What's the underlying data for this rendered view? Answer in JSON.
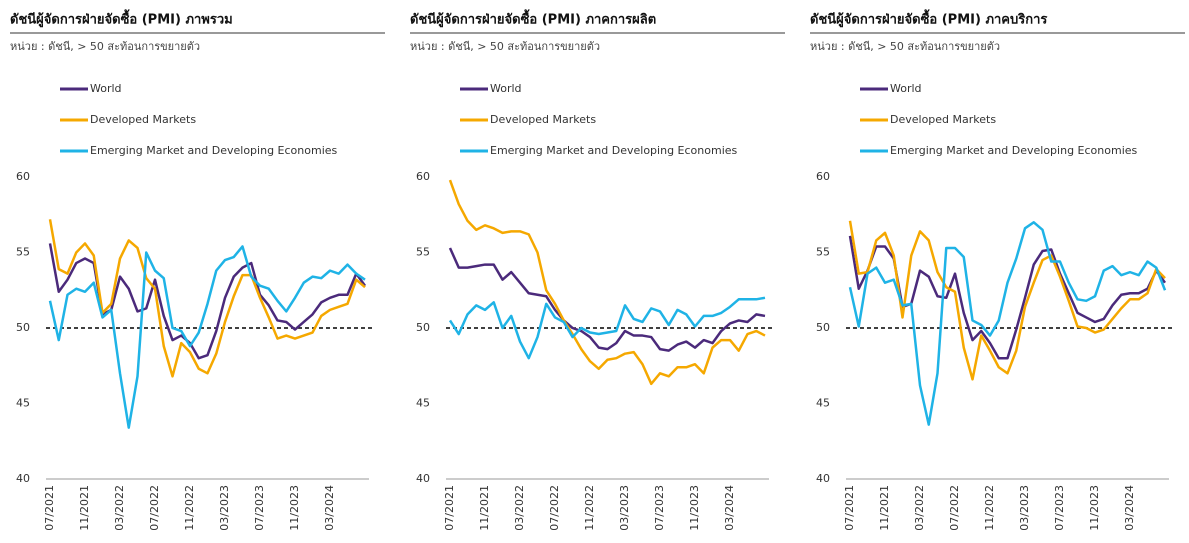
{
  "chart_data": [
    {
      "type": "line",
      "title": "ดัชนีผู้จัดการฝ่ายจัดซื้อ (PMI) ภาพรวม",
      "subtitle": "หน่วย : ดัชนี, > 50 สะท้อนการขยายตัว",
      "categories": [
        "07/2021",
        null,
        null,
        null,
        "11/2021",
        null,
        null,
        null,
        "03/2022",
        null,
        null,
        null,
        "07/2022",
        null,
        null,
        null,
        "11/2022",
        null,
        null,
        null,
        "03/2023",
        null,
        null,
        null,
        "07/2023",
        null,
        null,
        null,
        "11/2023",
        null,
        null,
        null,
        "03/2024",
        null,
        null,
        null,
        null
      ],
      "series": [
        {
          "name": "World",
          "color": "#4b2a7b",
          "values": [
            55.6,
            52.4,
            53.2,
            54.3,
            54.6,
            54.3,
            50.9,
            51.2,
            53.4,
            52.6,
            51.1,
            51.3,
            53.2,
            50.8,
            49.2,
            49.5,
            49.0,
            48.0,
            48.2,
            49.8,
            52.0,
            53.4,
            54.0,
            54.3,
            52.2,
            51.5,
            50.5,
            50.4,
            49.9,
            50.4,
            50.9,
            51.7,
            52.0,
            52.2,
            52.2,
            53.6,
            52.8
          ]
        },
        {
          "name": "Developed Markets",
          "color": "#f5a800",
          "values": [
            57.2,
            53.9,
            53.6,
            55.0,
            55.6,
            54.8,
            51.0,
            51.6,
            54.6,
            55.8,
            55.3,
            53.3,
            52.6,
            48.8,
            46.8,
            49.0,
            48.4,
            47.3,
            47.0,
            48.3,
            50.4,
            52.1,
            53.5,
            53.5,
            52.0,
            50.7,
            49.3,
            49.5,
            49.3,
            49.5,
            49.7,
            50.8,
            51.2,
            51.4,
            51.6,
            53.2,
            52.7
          ]
        },
        {
          "name": "Emerging Market and Developing Economies",
          "color": "#1fb3e6",
          "values": [
            51.8,
            49.2,
            52.2,
            52.6,
            52.4,
            53.0,
            50.7,
            51.2,
            47.0,
            43.4,
            46.8,
            55.0,
            53.8,
            53.3,
            50.0,
            49.8,
            48.8,
            49.7,
            51.6,
            53.8,
            54.5,
            54.7,
            55.4,
            53.4,
            52.8,
            52.6,
            51.8,
            51.1,
            52.0,
            53.0,
            53.4,
            53.3,
            53.8,
            53.6,
            54.2,
            53.6,
            53.2
          ]
        }
      ],
      "ylim": [
        40,
        60
      ],
      "yticks": [
        40,
        45,
        50,
        55,
        60
      ],
      "reference_line": 50
    },
    {
      "type": "line",
      "title": "ดัชนีผู้จัดการฝ่ายจัดซื้อ (PMI) ภาคการผลิต",
      "subtitle": "หน่วย : ดัชนี, > 50 สะท้อนการขยายตัว",
      "categories": [
        "07/2021",
        null,
        null,
        null,
        "11/2021",
        null,
        null,
        null,
        "03/2022",
        null,
        null,
        null,
        "07/2022",
        null,
        null,
        null,
        "11/2022",
        null,
        null,
        null,
        "03/2023",
        null,
        null,
        null,
        "07/2023",
        null,
        null,
        null,
        "11/2023",
        null,
        null,
        null,
        "03/2024",
        null,
        null,
        null,
        null
      ],
      "series": [
        {
          "name": "World",
          "color": "#4b2a7b",
          "values": [
            55.3,
            54.0,
            54.0,
            54.1,
            54.2,
            54.2,
            53.2,
            53.7,
            53.0,
            52.3,
            52.2,
            52.1,
            51.2,
            50.5,
            50.0,
            49.8,
            49.4,
            48.7,
            48.6,
            49.0,
            49.8,
            49.5,
            49.5,
            49.4,
            48.6,
            48.5,
            48.9,
            49.1,
            48.7,
            49.2,
            49.0,
            49.8,
            50.3,
            50.5,
            50.4,
            50.9,
            50.8
          ]
        },
        {
          "name": "Developed Markets",
          "color": "#f5a800",
          "values": [
            59.8,
            58.2,
            57.1,
            56.5,
            56.8,
            56.6,
            56.3,
            56.4,
            56.4,
            56.2,
            55.0,
            52.5,
            51.6,
            50.5,
            49.6,
            48.6,
            47.8,
            47.3,
            47.9,
            48.0,
            48.3,
            48.4,
            47.6,
            46.3,
            47.0,
            46.8,
            47.4,
            47.4,
            47.6,
            47.0,
            48.7,
            49.2,
            49.2,
            48.5,
            49.6,
            49.8,
            49.5
          ]
        },
        {
          "name": "Emerging Market and Developing Economies",
          "color": "#1fb3e6",
          "values": [
            50.5,
            49.6,
            50.9,
            51.5,
            51.2,
            51.7,
            50.0,
            50.8,
            49.1,
            48.0,
            49.4,
            51.6,
            50.7,
            50.4,
            49.4,
            50.0,
            49.7,
            49.6,
            49.7,
            49.8,
            51.5,
            50.6,
            50.4,
            51.3,
            51.1,
            50.2,
            51.2,
            50.9,
            50.1,
            50.8,
            50.8,
            51.0,
            51.4,
            51.9,
            51.9,
            51.9,
            52.0
          ]
        }
      ],
      "ylim": [
        40,
        60
      ],
      "yticks": [
        40,
        45,
        50,
        55,
        60
      ],
      "reference_line": 50
    },
    {
      "type": "line",
      "title": "ดัชนีผู้จัดการฝ่ายจัดซื้อ (PMI) ภาคบริการ",
      "subtitle": "หน่วย : ดัชนี, > 50 สะท้อนการขยายตัว",
      "categories": [
        "07/2021",
        null,
        null,
        null,
        "11/2021",
        null,
        null,
        null,
        "03/2022",
        null,
        null,
        null,
        "07/2022",
        null,
        null,
        null,
        "11/2022",
        null,
        null,
        null,
        "03/2023",
        null,
        null,
        null,
        "07/2023",
        null,
        null,
        null,
        "11/2023",
        null,
        null,
        null,
        "03/2024",
        null,
        null,
        null,
        null
      ],
      "series": [
        {
          "name": "World",
          "color": "#4b2a7b",
          "values": [
            56.1,
            52.6,
            53.8,
            55.4,
            55.4,
            54.6,
            51.4,
            51.6,
            53.8,
            53.4,
            52.1,
            52.0,
            53.6,
            51.0,
            49.2,
            49.8,
            49.0,
            48.0,
            48.0,
            49.9,
            52.0,
            54.2,
            55.1,
            55.2,
            53.6,
            52.3,
            51.0,
            50.7,
            50.4,
            50.6,
            51.5,
            52.2,
            52.3,
            52.3,
            52.6,
            53.8,
            53.0
          ]
        },
        {
          "name": "Developed Markets",
          "color": "#f5a800",
          "values": [
            57.1,
            53.6,
            53.7,
            55.8,
            56.3,
            54.8,
            50.7,
            54.8,
            56.4,
            55.8,
            53.7,
            52.7,
            52.4,
            48.7,
            46.6,
            49.5,
            48.5,
            47.4,
            47.0,
            48.5,
            51.4,
            53.0,
            54.5,
            54.8,
            53.4,
            51.8,
            50.1,
            50.0,
            49.7,
            49.9,
            50.6,
            51.3,
            51.9,
            51.9,
            52.3,
            53.9,
            53.3
          ]
        },
        {
          "name": "Emerging Market and Developing Economies",
          "color": "#1fb3e6",
          "values": [
            52.7,
            50.1,
            53.6,
            54.0,
            53.0,
            53.2,
            51.5,
            51.6,
            46.2,
            43.6,
            47.0,
            55.3,
            55.3,
            54.7,
            50.5,
            50.2,
            49.5,
            50.5,
            53.0,
            54.6,
            56.6,
            57.0,
            56.5,
            54.4,
            54.4,
            53.0,
            51.9,
            51.8,
            52.1,
            53.8,
            54.1,
            53.5,
            53.7,
            53.5,
            54.4,
            54.0,
            52.5
          ]
        }
      ],
      "ylim": [
        40,
        60
      ],
      "yticks": [
        40,
        45,
        50,
        55,
        60
      ],
      "reference_line": 50
    }
  ]
}
